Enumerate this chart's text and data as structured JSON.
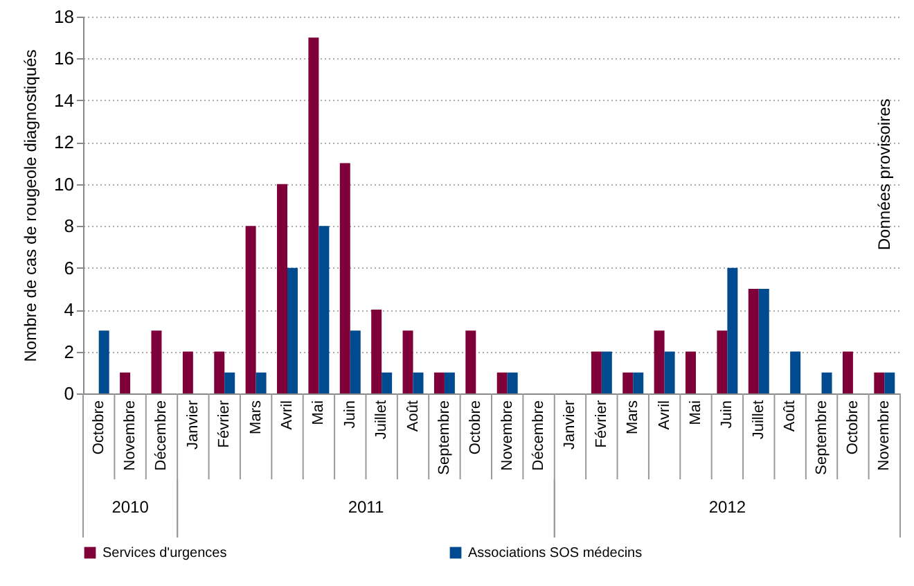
{
  "chart_data": {
    "type": "bar",
    "ylabel": "Nombre de cas de rougeole diagnostiqués",
    "categories": [
      "Octobre",
      "Novembre",
      "Décembre",
      "Janvier",
      "Février",
      "Mars",
      "Avril",
      "Mai",
      "Juin",
      "Juillet",
      "Août",
      "Septembre",
      "Octobre",
      "Novembre",
      "Décembre",
      "Janvier",
      "Février",
      "Mars",
      "Avril",
      "Mai",
      "Juin",
      "Juillet",
      "Août",
      "Septembre",
      "Octobre",
      "Novembre"
    ],
    "series": [
      {
        "name": "Services d'urgences",
        "color": "#7f0038",
        "values": [
          0,
          1,
          3,
          2,
          2,
          8,
          10,
          17,
          11,
          4,
          3,
          1,
          3,
          1,
          0,
          0,
          2,
          1,
          3,
          2,
          3,
          5,
          0,
          0,
          2,
          1
        ]
      },
      {
        "name": "Associations  SOS médecins",
        "color": "#004a8f",
        "values": [
          3,
          0,
          0,
          0,
          1,
          1,
          6,
          8,
          3,
          1,
          1,
          1,
          0,
          1,
          0,
          0,
          2,
          1,
          2,
          0,
          6,
          5,
          2,
          1,
          0,
          1
        ]
      }
    ],
    "ylim": [
      0,
      18
    ],
    "yticks": [
      0,
      2,
      4,
      6,
      8,
      10,
      12,
      14,
      16,
      18
    ],
    "grid": "y",
    "legend": "bottom",
    "annotations": [
      "Données provisoires",
      "2010",
      "2011",
      "2012"
    ]
  }
}
